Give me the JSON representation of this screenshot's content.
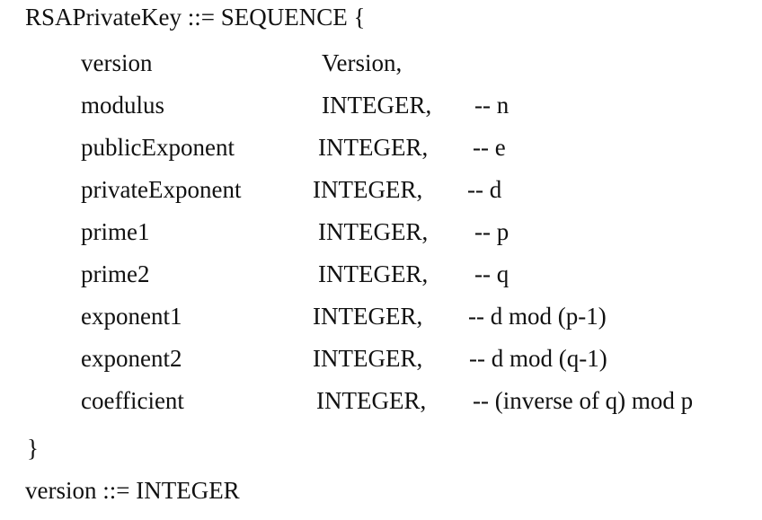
{
  "header": "RSAPrivateKey ::= SEQUENCE {",
  "fields": [
    {
      "name": "version",
      "type": "Version,",
      "comment": ""
    },
    {
      "name": "modulus",
      "type": "INTEGER,",
      "comment": "-- n"
    },
    {
      "name": "publicExponent",
      "type": "INTEGER,",
      "comment": "-- e"
    },
    {
      "name": "privateExponent",
      "type": "INTEGER,",
      "comment": "-- d"
    },
    {
      "name": "prime1",
      "type": "INTEGER,",
      "comment": "-- p"
    },
    {
      "name": "prime2",
      "type": "INTEGER,",
      "comment": "-- q"
    },
    {
      "name": "exponent1",
      "type": "INTEGER,",
      "comment": "-- d mod (p-1)"
    },
    {
      "name": "exponent2",
      "type": "INTEGER,",
      "comment": "-- d mod (q-1)"
    },
    {
      "name": "coefficient",
      "type": "INTEGER,",
      "comment": "-- (inverse of q) mod p"
    }
  ],
  "closing": "}",
  "footer": "version ::= INTEGER"
}
